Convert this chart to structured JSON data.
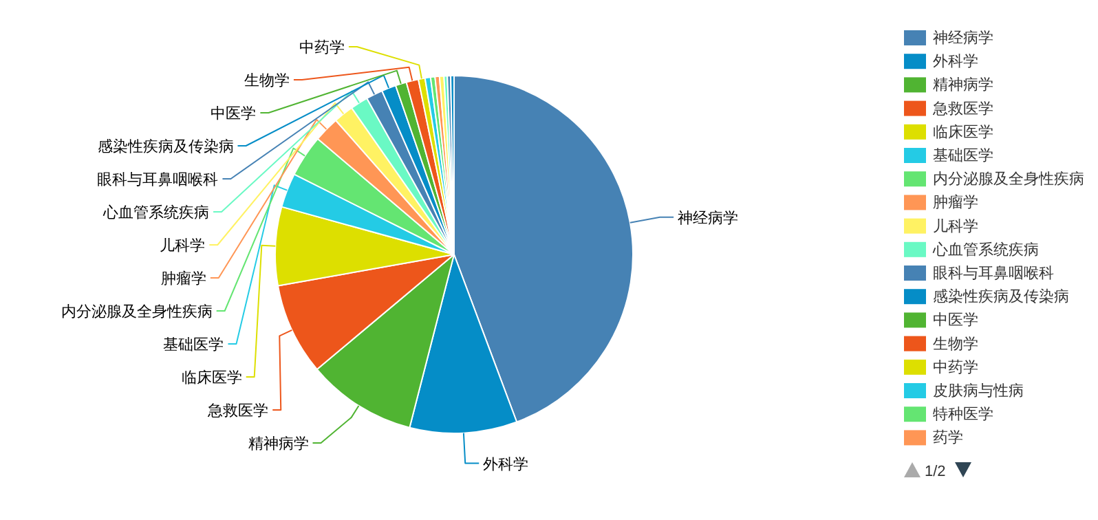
{
  "chart_data": {
    "type": "pie",
    "categories": [
      "神经病学",
      "外科学",
      "精神病学",
      "急救医学",
      "临床医学",
      "基础医学",
      "内分泌腺及全身性疾病",
      "肿瘤学",
      "儿科学",
      "心血管系统疾病",
      "眼科与耳鼻咽喉科",
      "感染性疾病及传染病",
      "中医学",
      "生物学",
      "中药学",
      "皮肤病与性病",
      "特种医学",
      "药学",
      null,
      null,
      null,
      null
    ],
    "values": [
      44.3,
      9.7,
      9.9,
      8.3,
      7.1,
      3.1,
      3.8,
      2.3,
      1.8,
      1.6,
      1.5,
      1.3,
      1.0,
      1.1,
      0.6,
      0.5,
      0.4,
      0.4,
      0.4,
      0.3,
      0.3,
      0.3
    ],
    "colors": [
      "#4682b4",
      "#058dc7",
      "#50b432",
      "#ed561b",
      "#dddf00",
      "#24cbe5",
      "#64e572",
      "#ff9655",
      "#fff263",
      "#6af9c4",
      "#4682b4",
      "#058dc7",
      "#50b432",
      "#ed561b",
      "#dddf00",
      "#24cbe5",
      "#64e572",
      "#ff9655",
      "#fff263",
      "#6af9c4",
      "#4682b4",
      "#058dc7"
    ],
    "legend": "right",
    "annotations": [
      "1/2"
    ]
  }
}
